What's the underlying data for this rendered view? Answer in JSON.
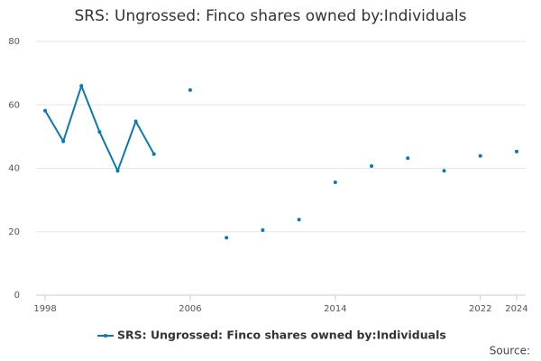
{
  "chart_data": {
    "type": "line",
    "title": "SRS: Ungrossed: Finco shares owned by:Individuals",
    "x": [
      1998,
      1999,
      2000,
      2001,
      2002,
      2003,
      2004,
      2005,
      2006,
      2007,
      2008,
      2009,
      2010,
      2011,
      2012,
      2013,
      2014,
      2015,
      2016,
      2017,
      2018,
      2019,
      2020,
      2021,
      2022,
      2023,
      2024
    ],
    "series": [
      {
        "name": "SRS: Ungrossed: Finco shares owned by:Individuals",
        "color": "#0a78b4",
        "values": [
          58.2,
          48.5,
          66,
          51.5,
          39.2,
          54.8,
          44.5,
          null,
          64.7,
          null,
          18.1,
          null,
          20.5,
          null,
          23.8,
          null,
          35.6,
          null,
          40.7,
          null,
          43.2,
          null,
          39.2,
          null,
          43.9,
          null,
          45.3
        ]
      }
    ],
    "xlim": [
      1997.5,
      2024.5
    ],
    "xticks": [
      1998,
      2006,
      2014,
      2022,
      2024
    ],
    "ylim": [
      0,
      80
    ],
    "yticks": [
      0,
      20,
      40,
      60,
      80
    ],
    "grid": true,
    "source": "Source:"
  }
}
